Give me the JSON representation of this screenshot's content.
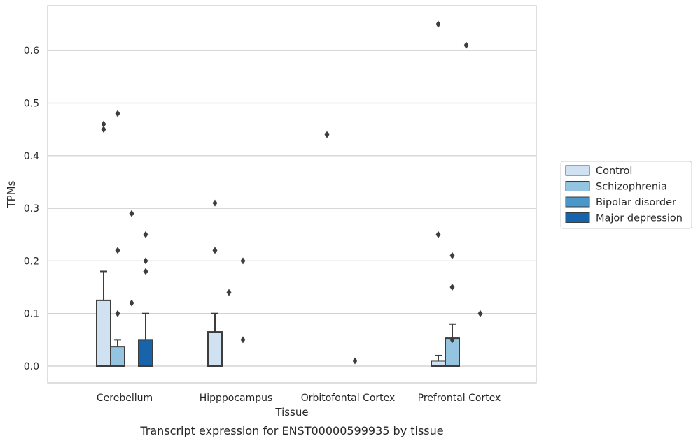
{
  "chart_data": {
    "type": "bar",
    "title": "",
    "caption": "Transcript expression for ENST00000599935 by tissue",
    "xlabel": "Tissue",
    "ylabel": "TPMs",
    "ylim": [
      -0.032,
      0.687
    ],
    "yticks": [
      0.0,
      0.1,
      0.2,
      0.3,
      0.4,
      0.5,
      0.6
    ],
    "ytick_labels": [
      "0.0",
      "0.1",
      "0.2",
      "0.3",
      "0.4",
      "0.5",
      "0.6"
    ],
    "grid": true,
    "legend_position": "right",
    "categories": [
      "Cerebellum",
      "Hipppocampus",
      "Orbitofontal Cortex",
      "Prefrontal Cortex"
    ],
    "series": [
      {
        "name": "Control",
        "color": "#d0e1f2",
        "values": [
          0.125,
          0.065,
          0.0,
          0.01
        ],
        "err": [
          0.18,
          0.1,
          null,
          0.02
        ],
        "outliers": [
          [
            0.45,
            0.46
          ],
          [
            0.22,
            0.31
          ],
          [
            0.44
          ],
          [
            0.25,
            0.65
          ]
        ]
      },
      {
        "name": "Schizophrenia",
        "color": "#94c4df",
        "values": [
          0.037,
          0.0,
          0.0,
          0.053
        ],
        "err": [
          0.05,
          null,
          null,
          0.08
        ],
        "outliers": [
          [
            0.1,
            0.22,
            0.48
          ],
          [
            0.14
          ],
          [],
          [
            0.05,
            0.15,
            0.21
          ]
        ]
      },
      {
        "name": "Bipolar disorder",
        "color": "#4a98c9",
        "values": [
          0.0,
          0.0,
          0.0,
          0.0
        ],
        "err": [
          null,
          null,
          null,
          null
        ],
        "outliers": [
          [
            0.12,
            0.29
          ],
          [
            0.05,
            0.2
          ],
          [
            0.01
          ],
          [
            0.61
          ]
        ]
      },
      {
        "name": "Major depression",
        "color": "#1764ab",
        "values": [
          0.05,
          0.0,
          0.0,
          0.0
        ],
        "err": [
          0.1,
          null,
          null,
          null
        ],
        "outliers": [
          [
            0.18,
            0.2,
            0.25
          ],
          [],
          [],
          [
            0.1
          ]
        ]
      }
    ]
  }
}
